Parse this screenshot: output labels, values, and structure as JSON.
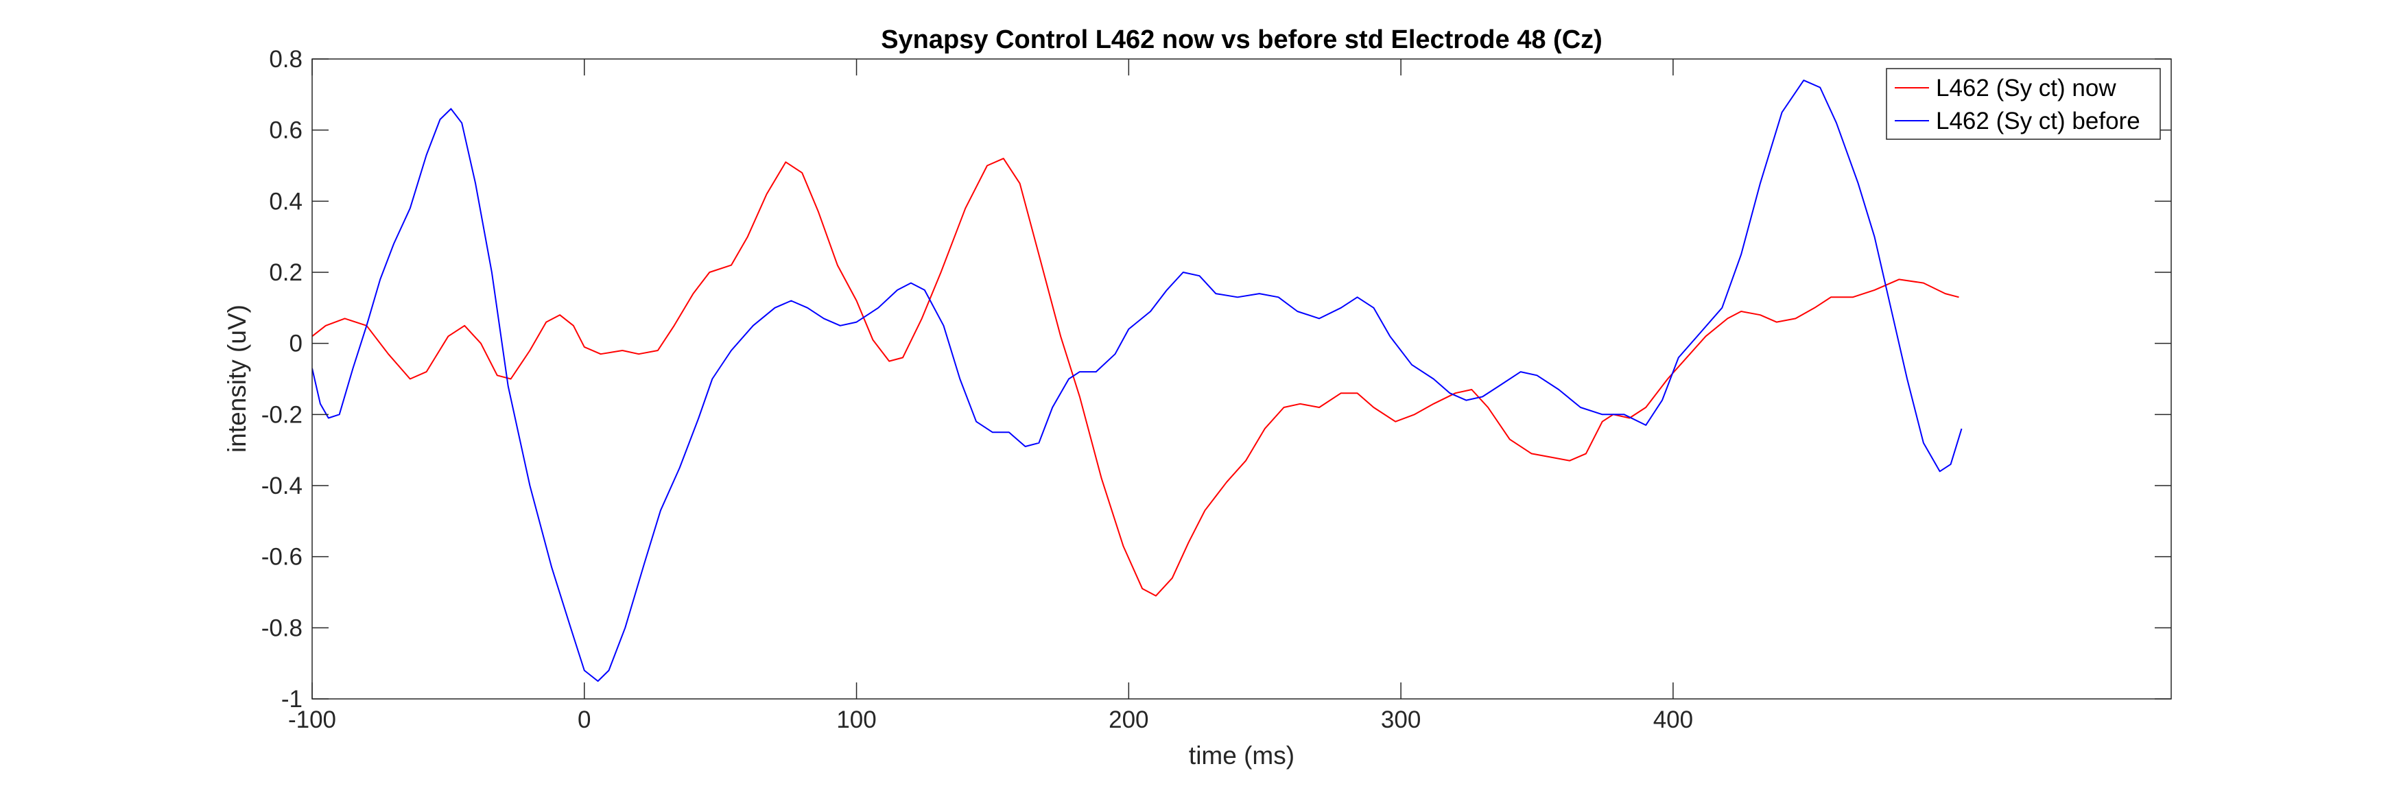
{
  "chart_data": {
    "type": "line",
    "title": "Synapsy Control L462 now vs before std Electrode 48 (Cz)",
    "xlabel": "time (ms)",
    "ylabel": "intensity (uV)",
    "xlim": [
      -100,
      583
    ],
    "ylim": [
      -1,
      0.8
    ],
    "xticks": [
      -100,
      0,
      100,
      200,
      300,
      400
    ],
    "yticks": [
      -1,
      -0.8,
      -0.6,
      -0.4,
      -0.2,
      0,
      0.2,
      0.4,
      0.6,
      0.8
    ],
    "xtick_labels": [
      "-100",
      "0",
      "100",
      "200",
      "300",
      "400"
    ],
    "ytick_labels": [
      "-1",
      "-0.8",
      "-0.6",
      "-0.4",
      "-0.2",
      "0",
      "0.2",
      "0.4",
      "0.6",
      "0.8"
    ],
    "grid": false,
    "legend_position": "top-right",
    "series": [
      {
        "name": "L462 (Sy ct) now",
        "color": "#ff0000",
        "points": [
          [
            -100,
            0.02
          ],
          [
            -95,
            0.05
          ],
          [
            -88,
            0.07
          ],
          [
            -80,
            0.05
          ],
          [
            -72,
            -0.03
          ],
          [
            -64,
            -0.1
          ],
          [
            -58,
            -0.08
          ],
          [
            -50,
            0.02
          ],
          [
            -44,
            0.05
          ],
          [
            -38,
            0.0
          ],
          [
            -32,
            -0.09
          ],
          [
            -27,
            -0.1
          ],
          [
            -20,
            -0.02
          ],
          [
            -14,
            0.06
          ],
          [
            -9,
            0.08
          ],
          [
            -4,
            0.05
          ],
          [
            0,
            -0.01
          ],
          [
            6,
            -0.03
          ],
          [
            14,
            -0.02
          ],
          [
            20,
            -0.03
          ],
          [
            27,
            -0.02
          ],
          [
            33,
            0.05
          ],
          [
            40,
            0.14
          ],
          [
            46,
            0.2
          ],
          [
            54,
            0.22
          ],
          [
            60,
            0.3
          ],
          [
            67,
            0.42
          ],
          [
            74,
            0.51
          ],
          [
            80,
            0.48
          ],
          [
            86,
            0.37
          ],
          [
            93,
            0.22
          ],
          [
            100,
            0.12
          ],
          [
            106,
            0.01
          ],
          [
            112,
            -0.05
          ],
          [
            117,
            -0.04
          ],
          [
            124,
            0.07
          ],
          [
            131,
            0.2
          ],
          [
            140,
            0.38
          ],
          [
            148,
            0.5
          ],
          [
            154,
            0.52
          ],
          [
            160,
            0.45
          ],
          [
            167,
            0.25
          ],
          [
            175,
            0.02
          ],
          [
            182,
            -0.15
          ],
          [
            190,
            -0.38
          ],
          [
            198,
            -0.57
          ],
          [
            205,
            -0.69
          ],
          [
            210,
            -0.71
          ],
          [
            216,
            -0.66
          ],
          [
            222,
            -0.56
          ],
          [
            228,
            -0.47
          ],
          [
            236,
            -0.39
          ],
          [
            243,
            -0.33
          ],
          [
            250,
            -0.24
          ],
          [
            257,
            -0.18
          ],
          [
            263,
            -0.17
          ],
          [
            270,
            -0.18
          ],
          [
            278,
            -0.14
          ],
          [
            284,
            -0.14
          ],
          [
            290,
            -0.18
          ],
          [
            298,
            -0.22
          ],
          [
            305,
            -0.2
          ],
          [
            312,
            -0.17
          ],
          [
            320,
            -0.14
          ],
          [
            326,
            -0.13
          ],
          [
            332,
            -0.18
          ],
          [
            340,
            -0.27
          ],
          [
            348,
            -0.31
          ],
          [
            355,
            -0.32
          ],
          [
            362,
            -0.33
          ],
          [
            368,
            -0.31
          ],
          [
            374,
            -0.22
          ],
          [
            378,
            -0.2
          ],
          [
            384,
            -0.21
          ],
          [
            390,
            -0.18
          ],
          [
            398,
            -0.1
          ],
          [
            405,
            -0.04
          ],
          [
            412,
            0.02
          ],
          [
            420,
            0.07
          ],
          [
            425,
            0.09
          ],
          [
            432,
            0.08
          ],
          [
            438,
            0.06
          ],
          [
            445,
            0.07
          ],
          [
            452,
            0.1
          ],
          [
            458,
            0.13
          ],
          [
            466,
            0.13
          ],
          [
            474,
            0.15
          ],
          [
            483,
            0.18
          ],
          [
            492,
            0.17
          ],
          [
            500,
            0.14
          ],
          [
            505,
            0.13
          ]
        ]
      },
      {
        "name": "L462 (Sy ct) before",
        "color": "#0000ff",
        "points": [
          [
            -100,
            -0.07
          ],
          [
            -97,
            -0.17
          ],
          [
            -94,
            -0.21
          ],
          [
            -90,
            -0.2
          ],
          [
            -85,
            -0.07
          ],
          [
            -80,
            0.05
          ],
          [
            -75,
            0.18
          ],
          [
            -70,
            0.28
          ],
          [
            -64,
            0.38
          ],
          [
            -58,
            0.53
          ],
          [
            -53,
            0.63
          ],
          [
            -49,
            0.66
          ],
          [
            -45,
            0.62
          ],
          [
            -40,
            0.45
          ],
          [
            -34,
            0.2
          ],
          [
            -28,
            -0.12
          ],
          [
            -20,
            -0.4
          ],
          [
            -12,
            -0.63
          ],
          [
            -5,
            -0.8
          ],
          [
            0,
            -0.92
          ],
          [
            5,
            -0.95
          ],
          [
            9,
            -0.92
          ],
          [
            15,
            -0.8
          ],
          [
            22,
            -0.62
          ],
          [
            28,
            -0.47
          ],
          [
            35,
            -0.35
          ],
          [
            42,
            -0.21
          ],
          [
            47,
            -0.1
          ],
          [
            54,
            -0.02
          ],
          [
            62,
            0.05
          ],
          [
            70,
            0.1
          ],
          [
            76,
            0.12
          ],
          [
            82,
            0.1
          ],
          [
            88,
            0.07
          ],
          [
            94,
            0.05
          ],
          [
            100,
            0.06
          ],
          [
            108,
            0.1
          ],
          [
            115,
            0.15
          ],
          [
            120,
            0.17
          ],
          [
            125,
            0.15
          ],
          [
            132,
            0.05
          ],
          [
            138,
            -0.1
          ],
          [
            144,
            -0.22
          ],
          [
            150,
            -0.25
          ],
          [
            156,
            -0.25
          ],
          [
            162,
            -0.29
          ],
          [
            167,
            -0.28
          ],
          [
            172,
            -0.18
          ],
          [
            178,
            -0.1
          ],
          [
            182,
            -0.08
          ],
          [
            188,
            -0.08
          ],
          [
            195,
            -0.03
          ],
          [
            200,
            0.04
          ],
          [
            208,
            0.09
          ],
          [
            214,
            0.15
          ],
          [
            220,
            0.2
          ],
          [
            226,
            0.19
          ],
          [
            232,
            0.14
          ],
          [
            240,
            0.13
          ],
          [
            248,
            0.14
          ],
          [
            255,
            0.13
          ],
          [
            262,
            0.09
          ],
          [
            270,
            0.07
          ],
          [
            278,
            0.1
          ],
          [
            284,
            0.13
          ],
          [
            290,
            0.1
          ],
          [
            296,
            0.02
          ],
          [
            304,
            -0.06
          ],
          [
            312,
            -0.1
          ],
          [
            318,
            -0.14
          ],
          [
            324,
            -0.16
          ],
          [
            330,
            -0.15
          ],
          [
            336,
            -0.12
          ],
          [
            344,
            -0.08
          ],
          [
            350,
            -0.09
          ],
          [
            358,
            -0.13
          ],
          [
            366,
            -0.18
          ],
          [
            374,
            -0.2
          ],
          [
            382,
            -0.2
          ],
          [
            390,
            -0.23
          ],
          [
            396,
            -0.16
          ],
          [
            402,
            -0.04
          ],
          [
            410,
            0.03
          ],
          [
            418,
            0.1
          ],
          [
            425,
            0.25
          ],
          [
            432,
            0.45
          ],
          [
            440,
            0.65
          ],
          [
            448,
            0.74
          ],
          [
            454,
            0.72
          ],
          [
            460,
            0.62
          ],
          [
            468,
            0.45
          ],
          [
            474,
            0.3
          ],
          [
            480,
            0.1
          ],
          [
            486,
            -0.1
          ],
          [
            492,
            -0.28
          ],
          [
            498,
            -0.36
          ],
          [
            502,
            -0.34
          ],
          [
            506,
            -0.24
          ]
        ]
      }
    ]
  }
}
